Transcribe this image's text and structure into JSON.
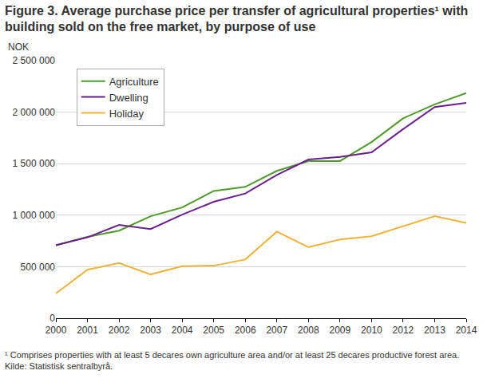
{
  "chart_data": {
    "type": "line",
    "title": "Figure 3. Average purchase price per transfer of agricultural properties¹ with building sold on the free market, by purpose of use",
    "y_label": "NOK",
    "footnotes": [
      "¹ Comprises properties with at least 5 decares own agriculture area and/or at least 25 decares productive forest area.",
      "Kilde: Statistisk sentralbyrå."
    ],
    "categories": [
      "2000",
      "2001",
      "2002",
      "2003",
      "2004",
      "2005",
      "2006",
      "2007",
      "2008",
      "2009",
      "2010",
      "2012",
      "2013",
      "2014"
    ],
    "series": [
      {
        "name": "Agriculture",
        "color": "#4f9a2b",
        "values": [
          705000,
          790000,
          850000,
          990000,
          1075000,
          1235000,
          1275000,
          1430000,
          1525000,
          1525000,
          1710000,
          1940000,
          2075000,
          2185000
        ]
      },
      {
        "name": "Dwelling",
        "color": "#6a1f8f",
        "values": [
          710000,
          785000,
          905000,
          865000,
          1005000,
          1130000,
          1210000,
          1390000,
          1540000,
          1565000,
          1610000,
          1835000,
          2050000,
          2090000
        ]
      },
      {
        "name": "Holiday",
        "color": "#f0b33a",
        "values": [
          240000,
          470000,
          535000,
          425000,
          505000,
          510000,
          570000,
          840000,
          690000,
          765000,
          795000,
          895000,
          990000,
          925000
        ]
      }
    ],
    "ylim": [
      0,
      2500000
    ],
    "yticks": [
      0,
      {
        "value": 500000,
        "label": "500 000"
      },
      {
        "value": 1000000,
        "label": "1 000 000"
      },
      {
        "value": 1500000,
        "label": "1 500 000"
      },
      {
        "value": 2000000,
        "label": "2 000 000"
      },
      {
        "value": 2500000,
        "label": "2 500 000"
      }
    ],
    "grid": true,
    "legend": "top-left"
  }
}
